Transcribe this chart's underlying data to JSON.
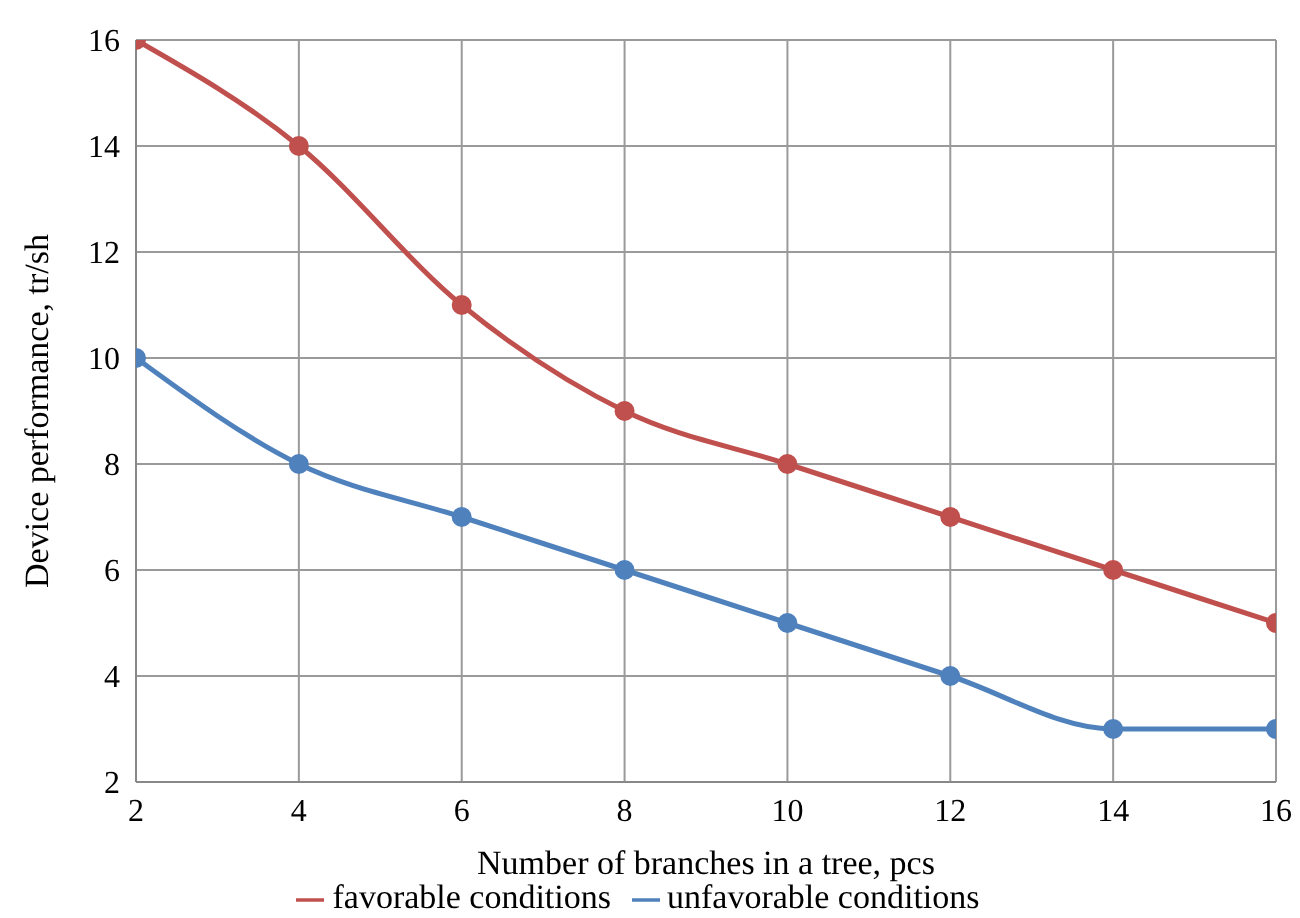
{
  "chart_data": {
    "type": "line",
    "xlabel": "Number of branches in a tree, pcs",
    "ylabel": "Device performance, tr/sh",
    "x": [
      2,
      4,
      6,
      8,
      10,
      12,
      14,
      16
    ],
    "xlim": [
      2,
      16
    ],
    "xticks": [
      2,
      4,
      6,
      8,
      10,
      12,
      14,
      16
    ],
    "ylim": [
      2,
      16
    ],
    "yticks": [
      2,
      4,
      6,
      8,
      10,
      12,
      14,
      16
    ],
    "grid": true,
    "legend": "bottom",
    "marker": "circle",
    "line_style": "solid",
    "series": [
      {
        "name": "unfavorable conditions",
        "color": "#4f81bd",
        "values": [
          10,
          8,
          7,
          6,
          5,
          4,
          3,
          3
        ]
      },
      {
        "name": "favorable conditions",
        "color": "#c0504d",
        "values": [
          16,
          14,
          11,
          9,
          8,
          7,
          6,
          5
        ]
      }
    ]
  }
}
